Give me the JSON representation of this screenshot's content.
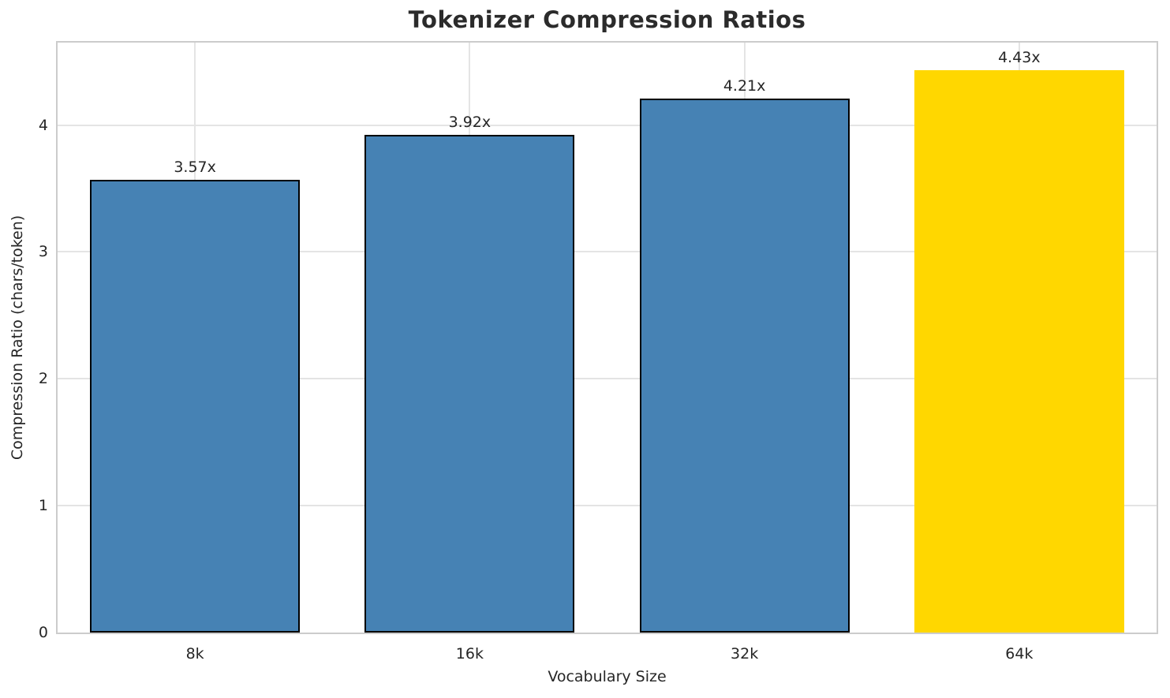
{
  "chart_data": {
    "type": "bar",
    "title": "Tokenizer Compression Ratios",
    "xlabel": "Vocabulary Size",
    "ylabel": "Compression Ratio (chars/token)",
    "categories": [
      "8k",
      "16k",
      "32k",
      "64k"
    ],
    "values": [
      3.57,
      3.92,
      4.21,
      4.43
    ],
    "bar_labels": [
      "3.57x",
      "3.92x",
      "4.21x",
      "4.43x"
    ],
    "yticks": [
      0,
      1,
      2,
      3,
      4
    ],
    "ylim": [
      0,
      4.65
    ],
    "bar_colors": [
      "#4682B4",
      "#4682B4",
      "#4682B4",
      "#FFD700"
    ],
    "bar_edge_colors": [
      "#000000",
      "#000000",
      "#000000",
      "none"
    ],
    "highlight_index": 3,
    "highlight_color": "#FFD700",
    "base_bar_color": "#4682B4",
    "grid": true,
    "grid_color": "#e4e4e4",
    "spine_color": "#cccccc",
    "legend": false
  }
}
